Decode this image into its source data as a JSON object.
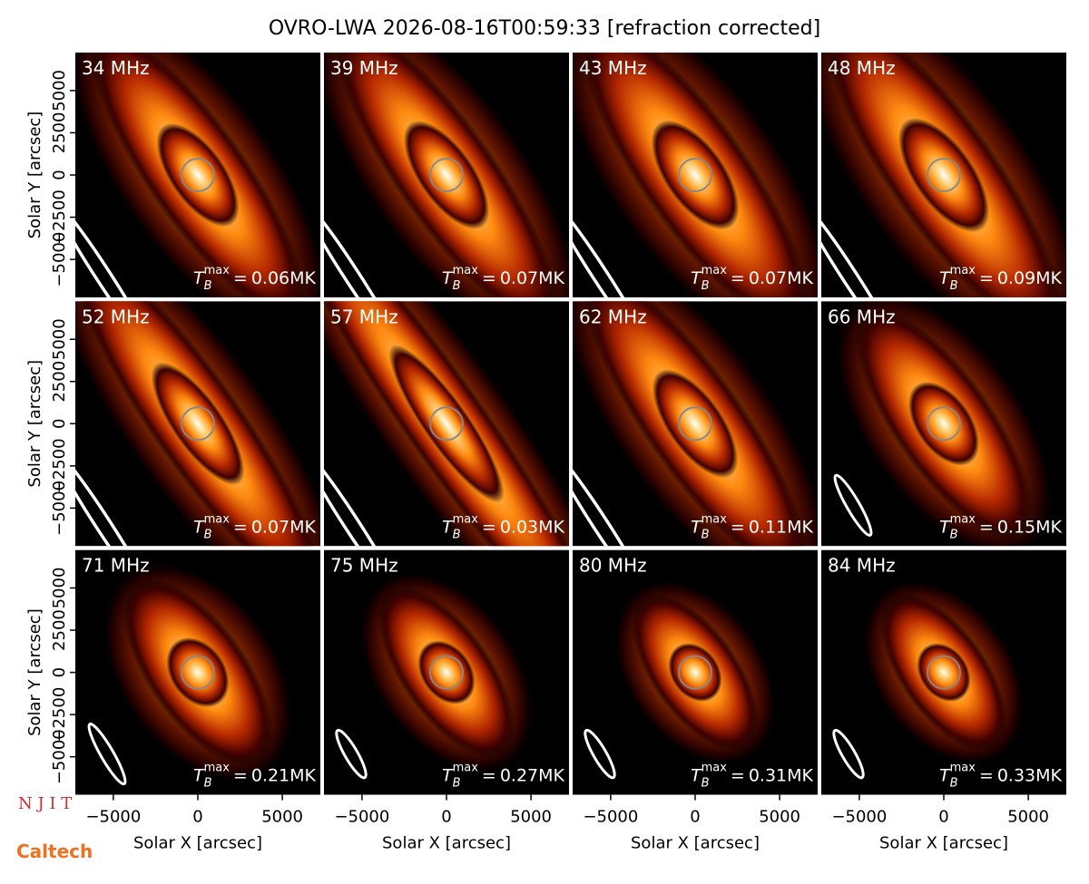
{
  "chart_data": {
    "type": "image-grid",
    "title": "OVRO-LWA 2026-08-16T00:59:33 [refraction corrected]",
    "xlabel": "Solar X [arcsec]",
    "ylabel": "Solar Y [arcsec]",
    "xlim": [
      -7250,
      7250
    ],
    "ylim": [
      -7250,
      7250
    ],
    "xticks": [
      {
        "value": -5000,
        "label": "−5000"
      },
      0,
      5000
    ],
    "yticks": [
      {
        "value": -5000,
        "label": "−5000"
      },
      {
        "value": -2500,
        "label": "−2500"
      },
      0,
      2500,
      5000
    ],
    "tb_label": {
      "symbol": "T",
      "sub": "B",
      "sup": "max",
      "eq": "="
    },
    "panels": [
      {
        "label": "34 MHz",
        "tmax": "0.06MK"
      },
      {
        "label": "39 MHz",
        "tmax": "0.07MK"
      },
      {
        "label": "43 MHz",
        "tmax": "0.07MK"
      },
      {
        "label": "48 MHz",
        "tmax": "0.09MK"
      },
      {
        "label": "52 MHz",
        "tmax": "0.07MK"
      },
      {
        "label": "57 MHz",
        "tmax": "0.03MK"
      },
      {
        "label": "62 MHz",
        "tmax": "0.11MK"
      },
      {
        "label": "66 MHz",
        "tmax": "0.15MK"
      },
      {
        "label": "71 MHz",
        "tmax": "0.21MK"
      },
      {
        "label": "75 MHz",
        "tmax": "0.27MK"
      },
      {
        "label": "80 MHz",
        "tmax": "0.31MK"
      },
      {
        "label": "84 MHz",
        "tmax": "0.33MK"
      }
    ]
  },
  "logos": [
    "N J I T",
    "Caltech"
  ]
}
